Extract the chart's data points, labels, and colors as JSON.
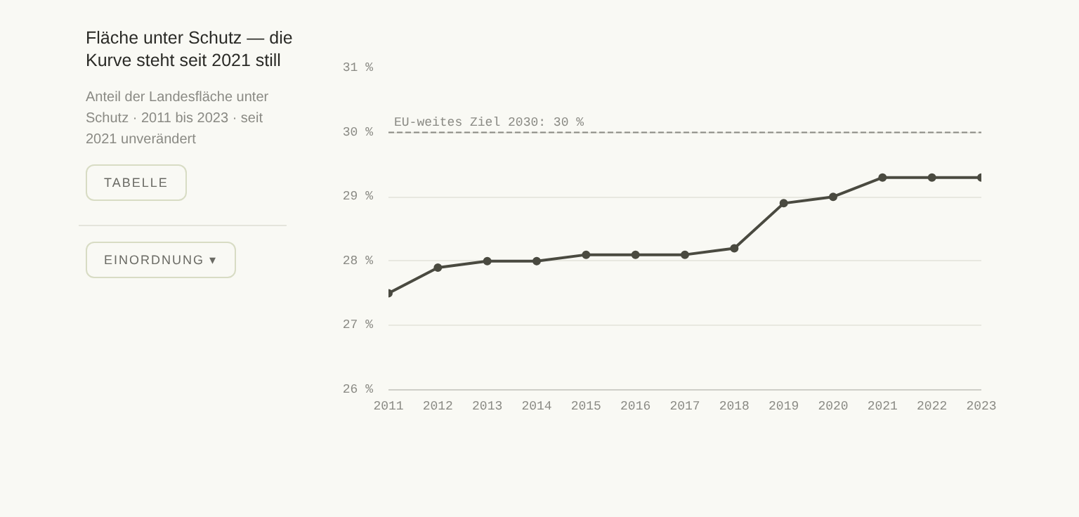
{
  "chart_data": {
    "type": "line",
    "title": "Fläche unter Schutz — die Kurve steht seit 2021 still",
    "subtitle": "Anteil der Landesfläche unter Schutz · 2011 bis 2023 · seit 2021 unverändert",
    "annotations": [
      "TABELLE",
      "EINORDNUNG ▾"
    ],
    "x": [
      2011,
      2012,
      2013,
      2014,
      2015,
      2016,
      2017,
      2018,
      2019,
      2020,
      2021,
      2022,
      2023
    ],
    "series": [
      {
        "color": "#4a4a40",
        "values": [
          27.5,
          27.9,
          28.0,
          28.0,
          28.1,
          28.1,
          28.1,
          28.2,
          28.9,
          29.0,
          29.3,
          29.3,
          29.3
        ]
      }
    ],
    "xlim": [
      2011,
      2023
    ],
    "xticks": [
      2011,
      2012,
      2013,
      2014,
      2015,
      2016,
      2017,
      2018,
      2019,
      2020,
      2021,
      2022,
      2023
    ],
    "ylim": [
      26,
      31
    ],
    "yticks": [
      {
        "value": 26,
        "label": "26 %"
      },
      {
        "value": 27,
        "label": "27 %"
      },
      {
        "value": 28,
        "label": "28 %"
      },
      {
        "value": 29,
        "label": "29 %"
      },
      {
        "value": 30,
        "label": "30 %"
      },
      {
        "value": 31,
        "label": "31 %"
      }
    ],
    "ref_lines": [
      {
        "axis": "y",
        "value": 30,
        "label": "EU-weites Ziel 2030: 30 %",
        "color": "#8a8a84",
        "line_style": "dashed"
      }
    ],
    "grid": "y",
    "marker": "circle",
    "line_style": "solid"
  }
}
